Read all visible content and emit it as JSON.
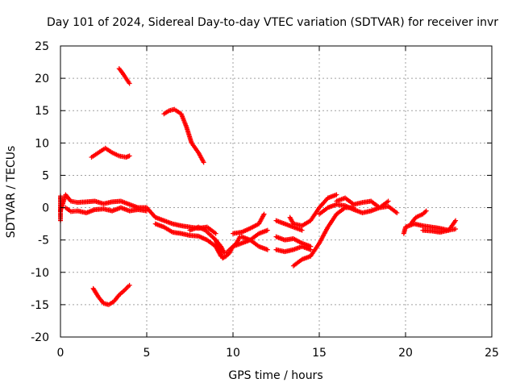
{
  "chart_data": {
    "type": "scatter",
    "title": "Day 101 of 2024, Sidereal Day-to-day VTEC variation (SDTVAR) for receiver invr",
    "xlabel": "GPS time / hours",
    "ylabel": "SDTVAR / TECUs",
    "xlim": [
      0,
      25
    ],
    "ylim": [
      -20,
      25
    ],
    "xticks": [
      0,
      5,
      10,
      15,
      20,
      25
    ],
    "yticks": [
      -20,
      -15,
      -10,
      -5,
      0,
      5,
      10,
      15,
      20,
      25
    ],
    "xtick_labels": [
      "0",
      "5",
      "10",
      "15",
      "20",
      "25"
    ],
    "ytick_labels": [
      "-20",
      "-15",
      "-10",
      "-5",
      "0",
      "5",
      "10",
      "15",
      "20",
      "25"
    ],
    "grid": true,
    "marker": "plus",
    "color": "#ff0000",
    "series": [
      {
        "name": "seg-main-0",
        "x": [
          0.0,
          0.3,
          0.6,
          1.0,
          1.5,
          2.0,
          2.5,
          3.0,
          3.5,
          4.0,
          4.5,
          5.0,
          5.5,
          6.0,
          6.5,
          7.0,
          7.5,
          8.0,
          8.5,
          9.0
        ],
        "y": [
          -0.5,
          2.0,
          1.0,
          0.8,
          0.9,
          1.0,
          0.6,
          0.9,
          1.0,
          0.5,
          0.0,
          0.0,
          -1.5,
          -2.0,
          -2.5,
          -2.8,
          -3.0,
          -3.2,
          -3.0,
          -4.0
        ]
      },
      {
        "name": "seg-main-0b",
        "x": [
          0.3,
          0.6,
          1.0,
          1.5,
          2.0,
          2.5,
          3.0,
          3.5,
          4.0,
          4.5,
          5.0
        ],
        "y": [
          0.0,
          -0.6,
          -0.5,
          -0.8,
          -0.3,
          -0.2,
          -0.5,
          0.0,
          -0.5,
          -0.3,
          -0.5
        ]
      },
      {
        "name": "seg-lower-5h",
        "x": [
          5.5,
          6.0,
          6.5,
          7.0,
          7.5,
          8.0,
          8.5,
          9.0,
          9.3
        ],
        "y": [
          -2.5,
          -3.0,
          -3.8,
          -4.0,
          -4.3,
          -4.4,
          -5.0,
          -6.0,
          -7.5
        ]
      },
      {
        "name": "seg-loop-8h",
        "x": [
          7.5,
          8.0,
          8.4,
          8.8,
          9.0,
          9.3,
          9.5
        ],
        "y": [
          -3.5,
          -3.0,
          -3.5,
          -4.5,
          -5.0,
          -6.0,
          -7.0
        ]
      },
      {
        "name": "seg-dip-9h",
        "x": [
          9.0,
          9.2,
          9.4,
          9.6,
          9.8,
          10.0,
          10.2,
          10.4
        ],
        "y": [
          -5.0,
          -6.5,
          -7.8,
          -7.5,
          -7.0,
          -6.0,
          -5.5,
          -4.5
        ]
      },
      {
        "name": "seg-9h-11h",
        "x": [
          9.6,
          10.0,
          10.5,
          11.0,
          11.5,
          12.0
        ],
        "y": [
          -7.0,
          -6.0,
          -5.5,
          -5.0,
          -6.0,
          -6.5
        ]
      },
      {
        "name": "seg-10h-12h",
        "x": [
          10.0,
          10.5,
          11.0,
          11.5,
          11.8
        ],
        "y": [
          -4.0,
          -3.8,
          -3.2,
          -2.5,
          -1.0
        ]
      },
      {
        "name": "seg-11h-12h",
        "x": [
          10.5,
          11.0,
          11.5,
          12.0
        ],
        "y": [
          -4.5,
          -5.0,
          -4.0,
          -3.5
        ]
      },
      {
        "name": "seg-12h-14h-a",
        "x": [
          12.5,
          13.0,
          13.5,
          14.0
        ],
        "y": [
          -2.0,
          -2.5,
          -3.0,
          -3.5
        ]
      },
      {
        "name": "seg-12h-14h-b",
        "x": [
          12.5,
          13.0,
          13.5,
          14.0,
          14.5
        ],
        "y": [
          -4.5,
          -5.0,
          -4.8,
          -5.5,
          -6.0
        ]
      },
      {
        "name": "seg-12h-14h-c",
        "x": [
          12.5,
          13.0,
          13.5,
          14.0,
          14.5
        ],
        "y": [
          -6.5,
          -6.8,
          -6.5,
          -6.0,
          -6.5
        ]
      },
      {
        "name": "seg-13h-ramp",
        "x": [
          13.5,
          14.0,
          14.5,
          15.0,
          15.5,
          16.0,
          16.5,
          17.0
        ],
        "y": [
          -9.0,
          -8.0,
          -7.5,
          -5.5,
          -3.0,
          -1.0,
          0.0,
          0.0
        ]
      },
      {
        "name": "seg-13h-hump",
        "x": [
          13.3,
          13.5,
          14.0,
          14.5,
          15.0,
          15.5,
          16.0
        ],
        "y": [
          -1.5,
          -2.5,
          -2.8,
          -2.0,
          0.0,
          1.5,
          2.0
        ]
      },
      {
        "name": "seg-15h-19h",
        "x": [
          15.0,
          15.5,
          16.0,
          16.5,
          17.0,
          17.5,
          18.0,
          18.5,
          19.0,
          19.5
        ],
        "y": [
          -1.0,
          0.0,
          0.5,
          0.3,
          -0.3,
          -0.8,
          -0.5,
          0.0,
          0.2,
          -0.8
        ]
      },
      {
        "name": "seg-16h-19h",
        "x": [
          16.0,
          16.5,
          17.0,
          17.5,
          18.0,
          18.5,
          19.0
        ],
        "y": [
          1.0,
          1.5,
          0.5,
          0.8,
          1.0,
          0.0,
          1.0
        ]
      },
      {
        "name": "seg-20h-23h-a",
        "x": [
          19.9,
          20.0,
          20.5,
          21.0,
          21.5,
          22.0,
          22.5,
          22.9
        ],
        "y": [
          -4.0,
          -3.0,
          -2.5,
          -2.8,
          -3.0,
          -3.2,
          -3.5,
          -3.3
        ]
      },
      {
        "name": "seg-20h-23h-b",
        "x": [
          20.3,
          20.6,
          21.0,
          21.2
        ],
        "y": [
          -2.5,
          -1.5,
          -1.0,
          -0.5
        ]
      },
      {
        "name": "seg-20h-23h-c",
        "x": [
          21.0,
          21.5,
          22.0,
          22.5,
          22.9
        ],
        "y": [
          -3.5,
          -3.6,
          -3.8,
          -3.5,
          -2.0
        ]
      },
      {
        "name": "seg-upper-2h",
        "x": [
          1.8,
          2.2,
          2.6,
          3.0,
          3.4,
          3.8,
          4.0
        ],
        "y": [
          7.8,
          8.5,
          9.2,
          8.5,
          8.0,
          7.8,
          8.0
        ]
      },
      {
        "name": "seg-upper-3h",
        "x": [
          3.4,
          3.6,
          3.8,
          4.0
        ],
        "y": [
          21.5,
          20.8,
          20.0,
          19.2
        ]
      },
      {
        "name": "seg-upper-6h",
        "x": [
          6.0,
          6.3,
          6.6,
          7.0,
          7.3,
          7.6,
          8.0,
          8.3
        ],
        "y": [
          14.5,
          15.0,
          15.2,
          14.5,
          12.5,
          10.0,
          8.5,
          7.0
        ]
      },
      {
        "name": "seg-low-2h",
        "x": [
          1.9,
          2.2,
          2.5,
          2.8,
          3.1,
          3.4,
          3.7,
          4.0
        ],
        "y": [
          -12.5,
          -13.8,
          -14.8,
          -15.0,
          -14.5,
          -13.5,
          -12.8,
          -12.0
        ]
      },
      {
        "name": "seg-tick-0h",
        "x": [
          0.0,
          0.0,
          0.0
        ],
        "y": [
          1.8,
          0.0,
          -2.0
        ]
      }
    ]
  }
}
